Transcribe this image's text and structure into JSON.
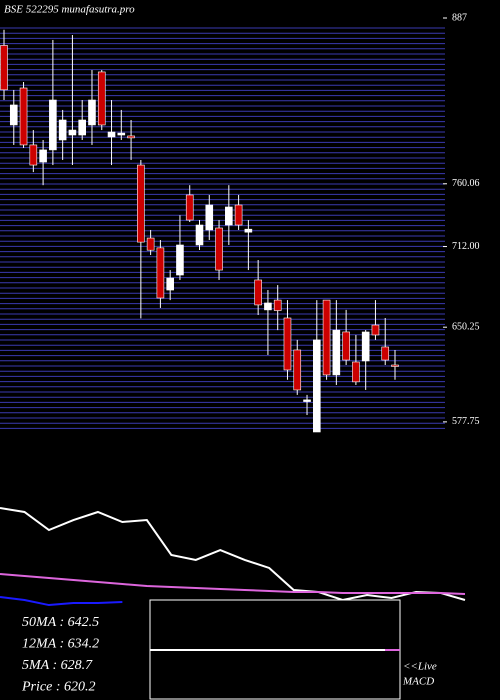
{
  "chart_data": [
    {
      "type": "candlestick",
      "title": "BSE 522295 munafasutra.pro",
      "up_color": "#ffffff",
      "down_color": "#cc0000",
      "open": [
        866,
        805.1,
        833.4,
        789.8,
        776.7,
        786,
        793.6,
        797.4,
        797.4,
        805.1,
        845.7,
        795.9,
        797.4,
        796.7,
        774.4,
        718.5,
        711,
        678.7,
        690.2,
        751.5,
        713.2,
        724.7,
        726.2,
        728.5,
        743.8,
        723,
        686.4,
        663.5,
        671,
        657.3,
        632.8,
        593.3,
        570,
        671,
        613.7,
        646.6,
        623.6,
        624.4,
        651.9,
        635.1,
        621.3
      ],
      "high": [
        878,
        831.9,
        838,
        801.2,
        793.6,
        870.2,
        816.6,
        874,
        824.2,
        847.2,
        847.2,
        824.2,
        816.6,
        808.9,
        778.3,
        724.7,
        717,
        694,
        736,
        759,
        732.3,
        751.5,
        732.3,
        759,
        751.5,
        732.3,
        701.7,
        678.7,
        682.5,
        671,
        640.5,
        598.4,
        671,
        671,
        671,
        663.5,
        644.3,
        648.1,
        671,
        657.3,
        632.8
      ],
      "low": [
        824.2,
        789.8,
        787.5,
        769,
        759,
        774.4,
        778.3,
        774.4,
        793.6,
        789.8,
        801.2,
        774.4,
        793.6,
        778.3,
        657,
        705.5,
        665,
        671,
        686.4,
        730.8,
        709.4,
        717,
        686.4,
        713.2,
        724.7,
        694,
        659.6,
        629,
        648,
        610,
        598.4,
        583,
        570,
        610,
        606,
        621.3,
        606,
        602.2,
        640.5,
        621.3,
        610
      ],
      "close": [
        832,
        820.4,
        789.8,
        774.4,
        786,
        824.2,
        808.9,
        801.2,
        808.9,
        824.2,
        805.1,
        799.7,
        798.9,
        795.2,
        715.4,
        709.2,
        672.6,
        687.9,
        713.2,
        732.3,
        728.5,
        743.8,
        694,
        742.3,
        728.5,
        725.3,
        667.3,
        668.8,
        663,
        617.5,
        602.2,
        594.6,
        640.5,
        613.7,
        648,
        625.1,
        608.4,
        646.6,
        644.3,
        625.1,
        620.2
      ],
      "ylim": [
        570,
        887
      ],
      "yticks": [
        887,
        {
          "value": 760.06,
          "label": "760.06"
        },
        {
          "value": 712,
          "label": "712.00"
        },
        650.25,
        577.75
      ]
    },
    {
      "type": "line",
      "ylim": [
        0,
        100
      ],
      "series": [
        {
          "color": "#ffffff",
          "values": [
            92.7,
            89.1,
            72.7,
            81.8,
            89.1,
            80,
            81.8,
            50,
            45.5,
            54.5,
            45.5,
            38.2,
            18.2,
            16.4,
            9.1,
            13.6,
            10.9,
            16.4,
            15.5,
            9.1
          ]
        },
        {
          "color": "#dd66dd",
          "values": [
            32.7,
            30.9,
            29.1,
            27.3,
            25.5,
            23.6,
            21.8,
            20.9,
            20,
            19.1,
            18.2,
            17.3,
            16.4,
            16.4,
            15.5,
            15.5,
            15.5,
            15.5,
            15.5,
            14.5
          ]
        },
        {
          "color": "#1a1aff",
          "values": [
            11.8,
            9.1,
            4.5,
            6.4,
            6.4,
            7.3,
            null,
            null,
            null,
            null,
            null,
            null,
            null,
            null,
            null,
            null,
            null,
            null,
            null,
            null
          ]
        }
      ],
      "annotations": [
        "50MA : 642.5",
        "12MA : 634.2",
        "5MA : 628.7",
        "Price  : 620.2"
      ],
      "macd_label": [
        "<<Live",
        "MACD"
      ]
    }
  ]
}
